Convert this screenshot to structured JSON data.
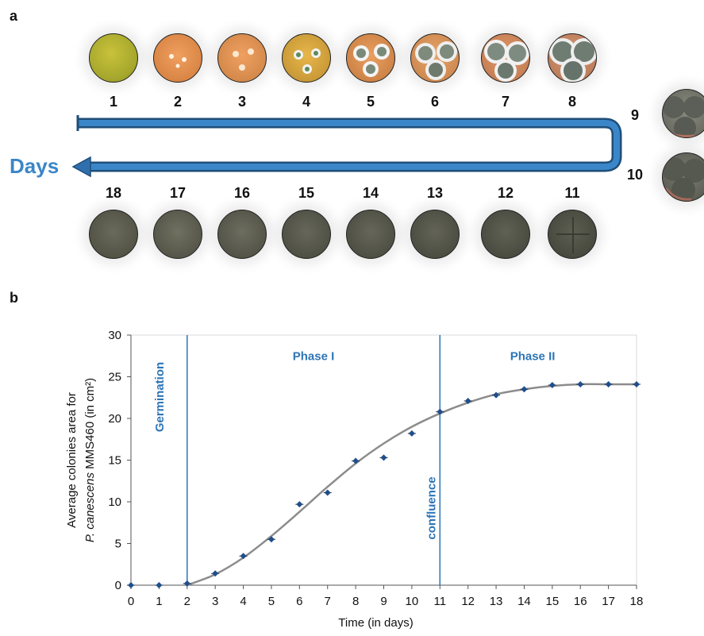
{
  "panel_a": {
    "label": "a",
    "days_label": "Days",
    "top_row": [
      "1",
      "2",
      "3",
      "4",
      "5",
      "6",
      "7",
      "8"
    ],
    "right_col": [
      "9",
      "10"
    ],
    "bottom_row": [
      "18",
      "17",
      "16",
      "15",
      "14",
      "13",
      "12",
      "11"
    ]
  },
  "panel_b": {
    "label": "b"
  },
  "colors": {
    "accent_blue": "#2e75b6",
    "arrow_blue": "#2f6fad",
    "curve_gray": "#8c8c8c",
    "point_blue": "#1f4e8c"
  },
  "chart_data": {
    "type": "scatter",
    "xlabel": "Time (in days)",
    "ylabel_line1": "Average colonies area for",
    "ylabel_line2_italic": "P. canescens",
    "ylabel_line2_rest": " MMS460 (in cm²)",
    "xlim": [
      0,
      18
    ],
    "ylim": [
      0,
      30
    ],
    "xticks": [
      "0",
      "1",
      "2",
      "3",
      "4",
      "5",
      "6",
      "7",
      "8",
      "9",
      "10",
      "11",
      "12",
      "13",
      "14",
      "15",
      "16",
      "17",
      "18"
    ],
    "yticks": [
      "0",
      "5",
      "10",
      "15",
      "20",
      "25",
      "30"
    ],
    "grid": false,
    "x": [
      0,
      1,
      2,
      3,
      4,
      5,
      6,
      7,
      8,
      9,
      10,
      11,
      12,
      13,
      14,
      15,
      16,
      17,
      18
    ],
    "y": [
      0,
      0,
      0.2,
      1.4,
      3.5,
      5.5,
      9.7,
      11.1,
      14.9,
      15.3,
      18.2,
      20.8,
      22.1,
      22.8,
      23.5,
      24.0,
      24.1,
      24.1,
      24.1
    ],
    "fit_curve": {
      "x": [
        2,
        3,
        4,
        5,
        6,
        7,
        8,
        9,
        10,
        11,
        12,
        13,
        14,
        15,
        16,
        17,
        18
      ],
      "y": [
        0,
        1.3,
        3.3,
        5.9,
        8.8,
        11.8,
        14.6,
        17.0,
        19.0,
        20.6,
        21.9,
        22.9,
        23.5,
        23.9,
        24.1,
        24.1,
        24.1
      ]
    },
    "vlines": [
      {
        "x": 2,
        "label": "Germination"
      },
      {
        "x": 11,
        "label": "confluence"
      }
    ],
    "phase_labels": [
      {
        "label": "Phase I",
        "x": 6.5,
        "y": 27
      },
      {
        "label": "Phase II",
        "x": 14.3,
        "y": 27
      }
    ]
  }
}
